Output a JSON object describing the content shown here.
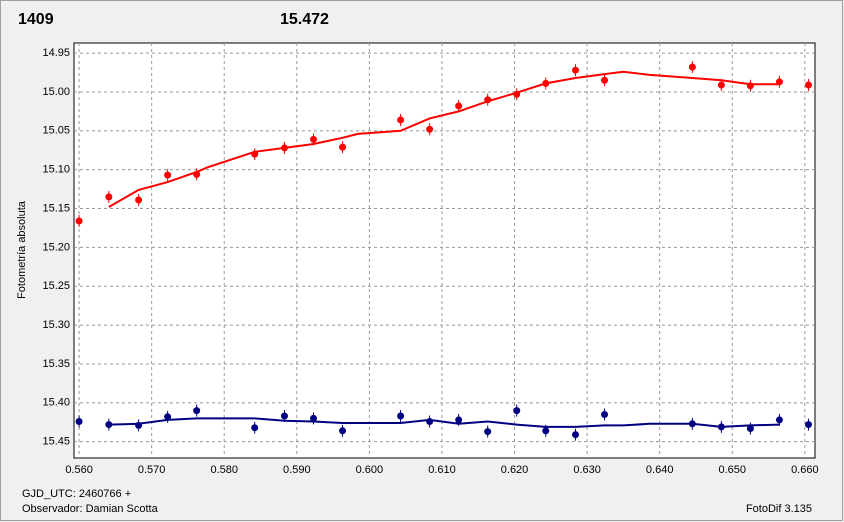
{
  "chart_data": {
    "type": "scatter",
    "title": "1409",
    "subtitle": "15.472",
    "y_label": "Fotometría absoluta",
    "notes": [
      "GJD_UTC: 2460766 +",
      "Observador: Damian Scotta",
      "FotoDif 3.135"
    ],
    "title_color": "#ff0000",
    "subtitle_color": "#000080",
    "xlim": [
      0.5593,
      0.6614
    ],
    "ylim": [
      15.471,
      14.937
    ],
    "xticks": [
      {
        "value": 0.56,
        "label": "0.560"
      },
      {
        "value": 0.57,
        "label": "0.570"
      },
      {
        "value": 0.58,
        "label": "0.580"
      },
      {
        "value": 0.59,
        "label": "0.590"
      },
      {
        "value": 0.6,
        "label": "0.600"
      },
      {
        "value": 0.61,
        "label": "0.610"
      },
      {
        "value": 0.62,
        "label": "0.620"
      },
      {
        "value": 0.63,
        "label": "0.630"
      },
      {
        "value": 0.64,
        "label": "0.640"
      },
      {
        "value": 0.65,
        "label": "0.650"
      },
      {
        "value": 0.66,
        "label": "0.660"
      }
    ],
    "yticks": [
      14.95,
      {
        "value": 15.0,
        "label": "15.00"
      },
      15.05,
      {
        "value": 15.1,
        "label": "15.10"
      },
      15.15,
      {
        "value": 15.2,
        "label": "15.20"
      },
      15.25,
      {
        "value": 15.3,
        "label": "15.30"
      },
      15.35,
      {
        "value": 15.4,
        "label": "15.40"
      },
      15.45
    ],
    "grid": true,
    "series": [
      {
        "mode": "markers",
        "color": "#ff0000",
        "x": [
          0.56,
          0.5641,
          0.5682,
          0.5722,
          0.5762,
          0.5842,
          0.5883,
          0.5923,
          0.5963,
          0.6043,
          0.6083,
          0.6123,
          0.6163,
          0.6203,
          0.6243,
          0.6284,
          0.6324,
          0.6445,
          0.6485,
          0.6525,
          0.6565,
          0.6605
        ],
        "values": [
          15.166,
          15.135,
          15.139,
          15.107,
          15.106,
          15.08,
          15.072,
          15.061,
          15.071,
          15.036,
          15.048,
          15.018,
          15.01,
          15.003,
          14.989,
          14.972,
          14.985,
          14.968,
          14.991,
          14.992,
          14.987,
          14.991
        ]
      },
      {
        "mode": "markers",
        "color": "#000080",
        "x": [
          0.56,
          0.5641,
          0.5682,
          0.5722,
          0.5762,
          0.5842,
          0.5883,
          0.5923,
          0.5963,
          0.6043,
          0.6083,
          0.6123,
          0.6163,
          0.6203,
          0.6243,
          0.6284,
          0.6324,
          0.6445,
          0.6485,
          0.6525,
          0.6565,
          0.6605
        ],
        "values": [
          15.424,
          15.428,
          15.429,
          15.418,
          15.41,
          15.432,
          15.417,
          15.42,
          15.436,
          15.417,
          15.424,
          15.422,
          15.437,
          15.41,
          15.436,
          15.441,
          15.415,
          15.427,
          15.431,
          15.433,
          15.422,
          15.428
        ]
      },
      {
        "mode": "line",
        "color": "#ff0000",
        "x": [
          0.5641,
          0.5682,
          0.5722,
          0.5762,
          0.5777,
          0.5842,
          0.5883,
          0.5923,
          0.5963,
          0.5984,
          0.6043,
          0.6083,
          0.6123,
          0.6163,
          0.6203,
          0.6243,
          0.6284,
          0.6324,
          0.635,
          0.6386,
          0.6445,
          0.6485,
          0.6525,
          0.6565
        ],
        "values": [
          15.148,
          15.126,
          15.116,
          15.103,
          15.097,
          15.077,
          15.072,
          15.067,
          15.059,
          15.054,
          15.05,
          15.034,
          15.025,
          15.012,
          15.001,
          14.989,
          14.982,
          14.977,
          14.974,
          14.978,
          14.982,
          14.985,
          14.99,
          14.99
        ]
      },
      {
        "mode": "line",
        "color": "#000080",
        "x": [
          0.5641,
          0.5682,
          0.5722,
          0.5762,
          0.5777,
          0.5842,
          0.5883,
          0.5923,
          0.5963,
          0.5984,
          0.6043,
          0.6083,
          0.6123,
          0.6163,
          0.6203,
          0.6243,
          0.6284,
          0.6324,
          0.635,
          0.6386,
          0.6445,
          0.6485,
          0.6525,
          0.6565
        ],
        "values": [
          15.428,
          15.427,
          15.422,
          15.42,
          15.42,
          15.42,
          15.423,
          15.424,
          15.426,
          15.426,
          15.426,
          15.422,
          15.427,
          15.424,
          15.428,
          15.431,
          15.431,
          15.429,
          15.429,
          15.427,
          15.427,
          15.431,
          15.429,
          15.428
        ]
      }
    ]
  }
}
